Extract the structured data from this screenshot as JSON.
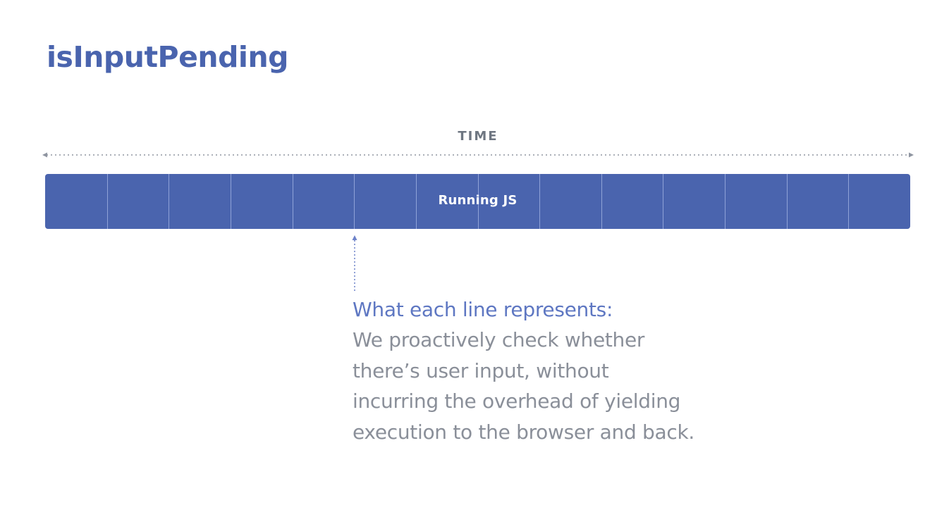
{
  "title": "isInputPending",
  "timeline": {
    "label": "TIME"
  },
  "bar": {
    "label": "Running JS",
    "segment_count": 14,
    "color": "#4a64ae",
    "pointed_segment_boundary": 5
  },
  "caption": {
    "heading": "What each line represents:",
    "body_lines": [
      "We proactively check whether",
      "there’s user input, without",
      "incurring the overhead of yielding",
      "execution to the browser and back."
    ]
  },
  "colors": {
    "title": "#4a64ae",
    "heading": "#5e77c2",
    "body": "#8a8f99",
    "arrow": "#8f95a1"
  }
}
